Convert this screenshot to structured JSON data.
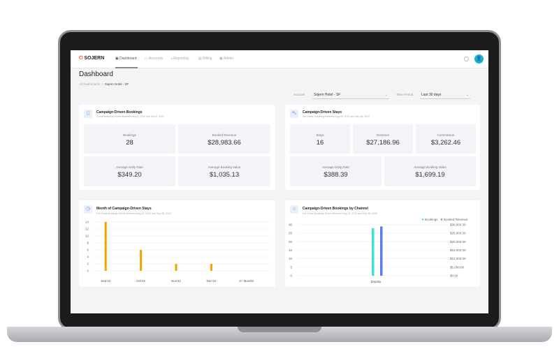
{
  "nav": {
    "logo": "SOJERN",
    "items": [
      "Dashboard",
      "Accounts",
      "Reporting",
      "Billing",
      "Admin"
    ],
    "active": "Dashboard"
  },
  "page": {
    "title": "Dashboard",
    "breadcrumb": [
      "All Dashboards",
      "Sojern Hotel - SF"
    ]
  },
  "filters": {
    "account_label": "Account",
    "account_value": "Sojern Hotel - SF",
    "period_label": "Time Period",
    "period_value": "Last 30 days"
  },
  "bookings_card": {
    "title": "Campaign-Driven Bookings",
    "subtitle": "Gross Bookings Driven Between Aug 9, 2022 and Sep 8, 2022",
    "stats": [
      {
        "label": "Bookings",
        "value": "28"
      },
      {
        "label": "Booked Revenue",
        "value": "$28,983.66"
      },
      {
        "label": "Average Daily Rate",
        "value": "$349.20"
      },
      {
        "label": "Average Booking Value",
        "value": "$1,035.13"
      }
    ]
  },
  "stays_card": {
    "title": "Campaign-Driven Stays",
    "subtitle": "Net Stays Occurring Between Aug 09, 2022 and Sep 08, 2022",
    "stats": [
      {
        "label": "Stays",
        "value": "16"
      },
      {
        "label": "Revenue",
        "value": "$27,186.96"
      },
      {
        "label": "Commission",
        "value": "$3,262.46"
      },
      {
        "label": "Average Daily Rate",
        "value": "$388.39"
      },
      {
        "label": "Average Booking Value",
        "value": "$1,699.19"
      }
    ]
  },
  "month_card": {
    "title": "Month of Campaign-Driven Stays",
    "subtitle": "For Gross Bookings Driven Between Aug 09, 2022 and Sep 08, 2022"
  },
  "channel_card": {
    "title": "Campaign-Driven Bookings by Channel",
    "subtitle": "For Gross Bookings Driven Between Aug 09, 2022 and Sep 08, 2022"
  },
  "chart_data": [
    {
      "type": "bar",
      "categories": [
        "Sep'22",
        "Oct'22",
        "Nov'22",
        "Dec'22",
        "3+ Months"
      ],
      "values": [
        14,
        6,
        2,
        2,
        0
      ],
      "ylim": [
        0,
        14
      ],
      "yticks": [
        "0",
        "2",
        "4",
        "6",
        "8",
        "10",
        "12",
        "14"
      ],
      "color": "#f5a300",
      "grid": true
    },
    {
      "type": "bar",
      "categories": [
        "Display"
      ],
      "series": [
        {
          "name": "Bookings",
          "values": [
            28
          ],
          "axis": "left",
          "color": "#3ee0d0"
        },
        {
          "name": "Booked Revenue",
          "values": [
            28983.66
          ],
          "axis": "right",
          "color": "#5b7cf0"
        }
      ],
      "ylim": [
        0,
        30
      ],
      "y2lim": [
        0,
        30000
      ],
      "yticks": [
        "0",
        "5",
        "10",
        "15",
        "20",
        "25",
        "30"
      ],
      "y2ticks": [
        "$0.00",
        "$5,000.00",
        "$10,000.00",
        "$15,000.00",
        "$20,000.00",
        "$25,000.00",
        "$30,000.00"
      ],
      "legend": "top-right",
      "grid": true
    }
  ]
}
